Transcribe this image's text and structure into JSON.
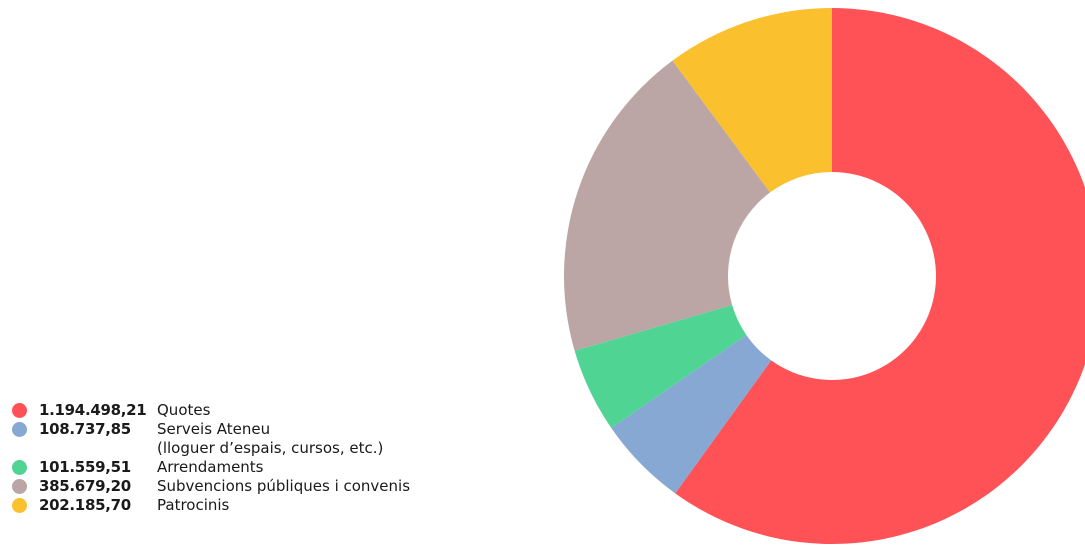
{
  "chart_data": {
    "type": "pie",
    "donut": true,
    "title": "",
    "series": [
      {
        "value_text": "1.194.498,21",
        "label": "Quotes",
        "value": 1194498.21,
        "color": "#ff5257"
      },
      {
        "value_text": "108.737,85",
        "label": "Serveis Ateneu\n(lloguer d’espais, cursos, etc.)",
        "value": 108737.85,
        "color": "#87a8d3"
      },
      {
        "value_text": "101.559,51",
        "label": "Arrendaments",
        "value": 101559.51,
        "color": "#50d493"
      },
      {
        "value_text": "385.679,20",
        "label": "Subvencions públiques i convenis",
        "value": 385679.2,
        "color": "#bba6a5"
      },
      {
        "value_text": "202.185,70",
        "label": "Patrocinis",
        "value": 202185.7,
        "color": "#fbc02d"
      }
    ],
    "legend_position": "bottom-left"
  }
}
